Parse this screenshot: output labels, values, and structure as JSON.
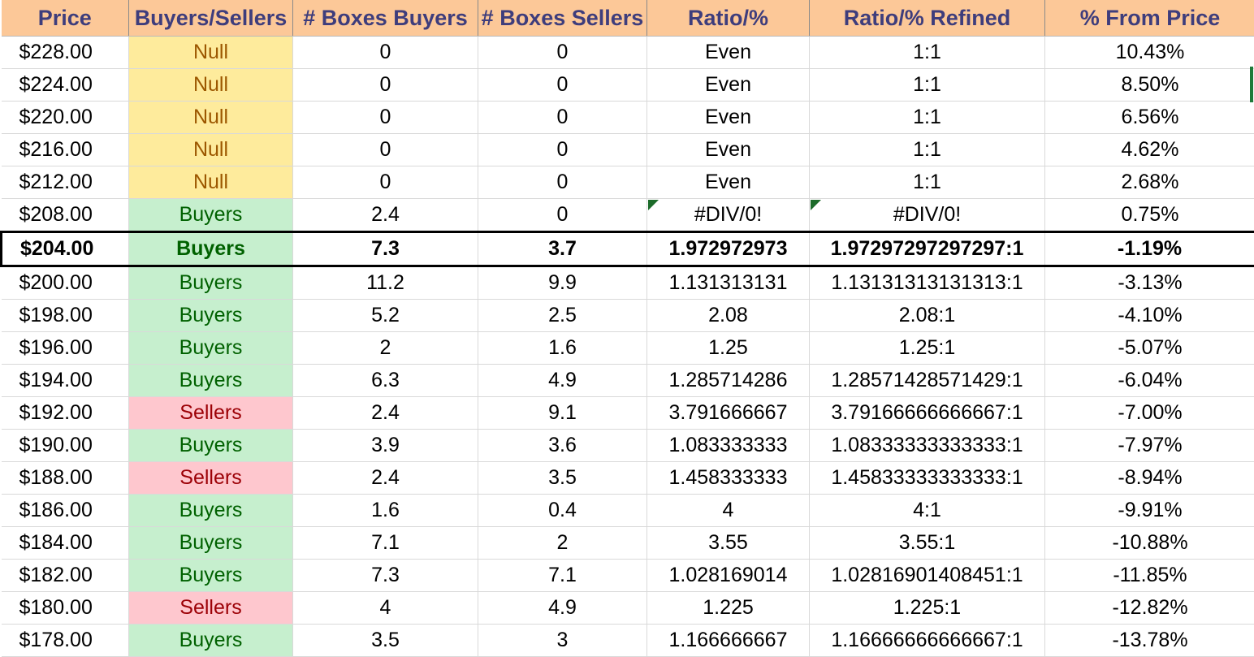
{
  "columns": [
    "Price",
    "Buyers/Sellers",
    "# Boxes Buyers",
    "# Boxes Sellers",
    "Ratio/%",
    "Ratio/% Refined",
    "% From Price"
  ],
  "rows": [
    {
      "price": "$228.00",
      "side": "Null",
      "boxes_buyers": "0",
      "boxes_sellers": "0",
      "ratio": "Even",
      "ratio_refined": "1:1",
      "from_price": "10.43%"
    },
    {
      "price": "$224.00",
      "side": "Null",
      "boxes_buyers": "0",
      "boxes_sellers": "0",
      "ratio": "Even",
      "ratio_refined": "1:1",
      "from_price": "8.50%"
    },
    {
      "price": "$220.00",
      "side": "Null",
      "boxes_buyers": "0",
      "boxes_sellers": "0",
      "ratio": "Even",
      "ratio_refined": "1:1",
      "from_price": "6.56%"
    },
    {
      "price": "$216.00",
      "side": "Null",
      "boxes_buyers": "0",
      "boxes_sellers": "0",
      "ratio": "Even",
      "ratio_refined": "1:1",
      "from_price": "4.62%"
    },
    {
      "price": "$212.00",
      "side": "Null",
      "boxes_buyers": "0",
      "boxes_sellers": "0",
      "ratio": "Even",
      "ratio_refined": "1:1",
      "from_price": "2.68%"
    },
    {
      "price": "$208.00",
      "side": "Buyers",
      "boxes_buyers": "2.4",
      "boxes_sellers": "0",
      "ratio": "#DIV/0!",
      "ratio_refined": "#DIV/0!",
      "from_price": "0.75%"
    },
    {
      "price": "$204.00",
      "side": "Buyers",
      "boxes_buyers": "7.3",
      "boxes_sellers": "3.7",
      "ratio": "1.972972973",
      "ratio_refined": "1.97297297297297:1",
      "from_price": "-1.19%"
    },
    {
      "price": "$200.00",
      "side": "Buyers",
      "boxes_buyers": "11.2",
      "boxes_sellers": "9.9",
      "ratio": "1.131313131",
      "ratio_refined": "1.13131313131313:1",
      "from_price": "-3.13%"
    },
    {
      "price": "$198.00",
      "side": "Buyers",
      "boxes_buyers": "5.2",
      "boxes_sellers": "2.5",
      "ratio": "2.08",
      "ratio_refined": "2.08:1",
      "from_price": "-4.10%"
    },
    {
      "price": "$196.00",
      "side": "Buyers",
      "boxes_buyers": "2",
      "boxes_sellers": "1.6",
      "ratio": "1.25",
      "ratio_refined": "1.25:1",
      "from_price": "-5.07%"
    },
    {
      "price": "$194.00",
      "side": "Buyers",
      "boxes_buyers": "6.3",
      "boxes_sellers": "4.9",
      "ratio": "1.285714286",
      "ratio_refined": "1.28571428571429:1",
      "from_price": "-6.04%"
    },
    {
      "price": "$192.00",
      "side": "Sellers",
      "boxes_buyers": "2.4",
      "boxes_sellers": "9.1",
      "ratio": "3.791666667",
      "ratio_refined": "3.79166666666667:1",
      "from_price": "-7.00%"
    },
    {
      "price": "$190.00",
      "side": "Buyers",
      "boxes_buyers": "3.9",
      "boxes_sellers": "3.6",
      "ratio": "1.083333333",
      "ratio_refined": "1.08333333333333:1",
      "from_price": "-7.97%"
    },
    {
      "price": "$188.00",
      "side": "Sellers",
      "boxes_buyers": "2.4",
      "boxes_sellers": "3.5",
      "ratio": "1.458333333",
      "ratio_refined": "1.45833333333333:1",
      "from_price": "-8.94%"
    },
    {
      "price": "$186.00",
      "side": "Buyers",
      "boxes_buyers": "1.6",
      "boxes_sellers": "0.4",
      "ratio": "4",
      "ratio_refined": "4:1",
      "from_price": "-9.91%"
    },
    {
      "price": "$184.00",
      "side": "Buyers",
      "boxes_buyers": "7.1",
      "boxes_sellers": "2",
      "ratio": "3.55",
      "ratio_refined": "3.55:1",
      "from_price": "-10.88%"
    },
    {
      "price": "$182.00",
      "side": "Buyers",
      "boxes_buyers": "7.3",
      "boxes_sellers": "7.1",
      "ratio": "1.028169014",
      "ratio_refined": "1.02816901408451:1",
      "from_price": "-11.85%"
    },
    {
      "price": "$180.00",
      "side": "Sellers",
      "boxes_buyers": "4",
      "boxes_sellers": "4.9",
      "ratio": "1.225",
      "ratio_refined": "1.225:1",
      "from_price": "-12.82%"
    },
    {
      "price": "$178.00",
      "side": "Buyers",
      "boxes_buyers": "3.5",
      "boxes_sellers": "3",
      "ratio": "1.166666667",
      "ratio_refined": "1.16666666666667:1",
      "from_price": "-13.78%"
    }
  ],
  "current_price_row": 6,
  "error_flag_rows": [
    5
  ],
  "icons": {
    "error_flag": "error-indicator-icon"
  },
  "colors": {
    "header_bg": "#fcc898",
    "header_text": "#3e3d7c",
    "null_bg": "#feeb9c",
    "null_text": "#9c5700",
    "buyers_bg": "#c6efce",
    "buyers_text": "#006100",
    "sellers_bg": "#fec7ce",
    "sellers_text": "#9c0006"
  }
}
